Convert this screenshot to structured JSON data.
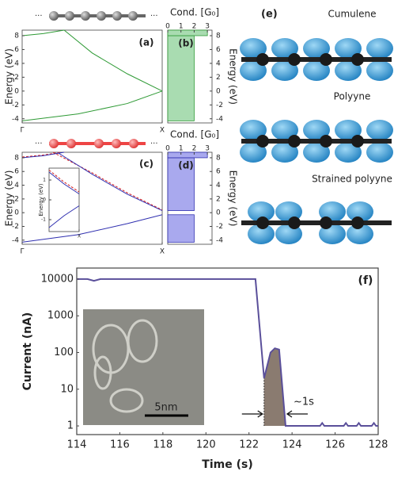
{
  "chart_data": [
    {
      "type": "line",
      "panel_label": "(a)",
      "ylabel": "Energy (eV)",
      "xlim": [
        0,
        1
      ],
      "xticks": [
        {
          "value": 0,
          "label": "Γ"
        },
        {
          "value": 1,
          "label": "X"
        }
      ],
      "ylim": [
        -4.6,
        8.8
      ],
      "yticks": [
        -4,
        -2,
        0,
        2,
        4,
        6,
        8
      ],
      "series": [
        {
          "color": "#2e9a35",
          "x": [
            0.3,
            0.5,
            0.75,
            1
          ],
          "values": [
            8.8,
            5.5,
            2.5,
            0
          ]
        },
        {
          "color": "#2e9a35",
          "x": [
            0,
            0.4,
            0.75,
            1
          ],
          "values": [
            -4.3,
            -3.3,
            -1.8,
            0
          ]
        },
        {
          "color": "#2e9a35",
          "x": [
            0,
            0.15,
            0.3
          ],
          "values": [
            8.0,
            8.3,
            8.8
          ]
        }
      ]
    },
    {
      "type": "conductance",
      "panel_label": "(b)",
      "xlabel": "Cond. [G₀]",
      "ylabel": "Energy (eV)",
      "xlim": [
        0,
        3.35
      ],
      "xticks": [
        0,
        1,
        2,
        3
      ],
      "ylim": [
        -4.6,
        8.8
      ],
      "yticks": [
        -4,
        -2,
        0,
        2,
        4,
        6,
        8
      ],
      "energy_bins": [
        -4.6,
        -4.3,
        8.0,
        8.8
      ],
      "values": [
        0,
        2,
        3
      ],
      "color": "#2e9a35",
      "fill": "#a9dcb1"
    },
    {
      "type": "line",
      "panel_label": "(c)",
      "ylabel": "Energy (eV)",
      "xlim": [
        0,
        1
      ],
      "xticks": [
        {
          "value": 0,
          "label": "Γ"
        },
        {
          "value": 1,
          "label": "X"
        }
      ],
      "ylim": [
        -4.6,
        8.8
      ],
      "yticks": [
        -4,
        -2,
        0,
        2,
        4,
        6,
        8
      ],
      "series": [
        {
          "color": "#d62020",
          "dash": true,
          "x": [
            0.22,
            0.5,
            0.75,
            1
          ],
          "values": [
            8.8,
            5.8,
            2.9,
            0.4
          ]
        },
        {
          "color": "#3030b0",
          "x": [
            0.25,
            0.5,
            0.75,
            1
          ],
          "values": [
            8.8,
            5.6,
            2.7,
            0.3
          ]
        },
        {
          "color": "#d62020",
          "dash": true,
          "x": [
            0,
            0.15,
            0.28
          ],
          "values": [
            8.1,
            8.4,
            8.8
          ]
        },
        {
          "color": "#3030b0",
          "x": [
            0,
            0.15,
            0.3
          ],
          "values": [
            8.0,
            8.3,
            8.8
          ]
        },
        {
          "color": "#3030b0",
          "x": [
            0,
            0.4,
            0.75,
            1
          ],
          "values": [
            -4.3,
            -3.2,
            -1.6,
            -0.3
          ]
        }
      ]
    },
    {
      "type": "line",
      "ylabel": "Energy (eV)",
      "xlim": [
        0.6,
        1
      ],
      "xticks": [
        {
          "value": 1,
          "label": "X"
        }
      ],
      "ylim": [
        -1.6,
        1.6
      ],
      "yticks": [
        -1,
        0,
        1
      ],
      "series": [
        {
          "color": "#d62020",
          "dash": true,
          "x": [
            0.6,
            0.8,
            1
          ],
          "values": [
            1.5,
            0.9,
            0.4
          ]
        },
        {
          "color": "#3030b0",
          "x": [
            0.6,
            0.8,
            1
          ],
          "values": [
            1.4,
            0.8,
            0.3
          ]
        },
        {
          "color": "#3030b0",
          "x": [
            0.6,
            0.8,
            1
          ],
          "values": [
            -1.4,
            -0.8,
            -0.3
          ]
        }
      ]
    },
    {
      "type": "conductance",
      "panel_label": "(d)",
      "xlabel": "Cond. [G₀]",
      "ylabel": "Energy (eV)",
      "xlim": [
        0,
        3.35
      ],
      "xticks": [
        0,
        1,
        2,
        3
      ],
      "ylim": [
        -4.6,
        8.8
      ],
      "yticks": [
        -4,
        -2,
        0,
        2,
        4,
        6,
        8
      ],
      "energy_bins": [
        -4.6,
        -4.3,
        -0.3,
        0.3,
        8.0,
        8.8
      ],
      "values": [
        0,
        2,
        0,
        2,
        3
      ],
      "color": "#3030b0",
      "fill": "#a9a9ee"
    },
    {
      "type": "line",
      "log": true,
      "panel_label": "(f)",
      "xlabel": "Time (s)",
      "ylabel": "Current (nA)",
      "annotation": "~1s",
      "scale_bar": "5nm",
      "xlim": [
        114,
        128
      ],
      "xticks": [
        114,
        116,
        118,
        120,
        122,
        124,
        126,
        128
      ],
      "ylim": [
        0.58,
        20000
      ],
      "yticks": [
        1,
        10,
        100,
        1000,
        10000
      ],
      "shade_range": [
        122.7,
        123.7
      ],
      "series": [
        {
          "color": "#5a4f9a",
          "x": [
            114,
            114.5,
            114.8,
            115.1,
            115.3,
            122.3,
            122.7,
            123.0,
            123.2,
            123.4,
            123.7,
            125.3,
            125.4,
            125.5,
            126.4,
            126.5,
            126.6,
            127.0,
            127.1,
            127.2,
            127.7,
            127.8,
            127.9,
            128
          ],
          "values": [
            10000,
            10000,
            9000,
            10000,
            10000,
            10000,
            20,
            100,
            130,
            120,
            1,
            1,
            1.2,
            1,
            1,
            1.2,
            1,
            1,
            1.2,
            1,
            1,
            1.2,
            1,
            1
          ]
        }
      ]
    }
  ],
  "panel_e": {
    "label": "(e)",
    "captions": [
      "Cumulene",
      "Polyyne",
      "Strained polyyne"
    ]
  }
}
